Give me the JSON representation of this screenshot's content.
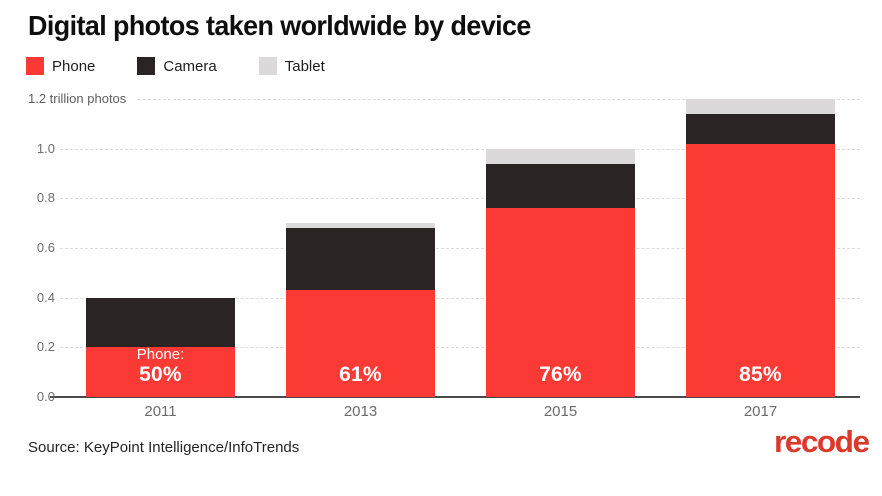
{
  "title": "Digital photos taken worldwide by device",
  "legend": {
    "items": [
      {
        "label": "Phone",
        "color": "#fb3a35"
      },
      {
        "label": "Camera",
        "color": "#2a2425"
      },
      {
        "label": "Tablet",
        "color": "#dbd9d9"
      }
    ]
  },
  "source": "Source: KeyPoint Intelligence/InfoTrends",
  "logo_text": "recode",
  "colors": {
    "phone": "#fb3a35",
    "camera": "#2a2425",
    "tablet": "#dbd9d9",
    "gridline": "#dcdcdc",
    "axis": "#4a4a4a",
    "logo_red": "#dc392d",
    "bar_label_text": "#ffffff"
  },
  "chart_data": {
    "type": "bar",
    "stacked": true,
    "title": "Digital photos taken worldwide by device",
    "xlabel": "",
    "ylabel": "trillion photos",
    "ylim": [
      0,
      1.2
    ],
    "grid": "dashed horizontal",
    "legend_position": "top-left",
    "categories": [
      "2011",
      "2013",
      "2015",
      "2017"
    ],
    "series": [
      {
        "name": "Phone",
        "color": "#fb3a35",
        "values": [
          0.2,
          0.43,
          0.76,
          1.02
        ]
      },
      {
        "name": "Camera",
        "color": "#2a2425",
        "values": [
          0.2,
          0.25,
          0.18,
          0.12
        ]
      },
      {
        "name": "Tablet",
        "color": "#dbd9d9",
        "values": [
          0.0,
          0.02,
          0.06,
          0.06
        ]
      }
    ],
    "totals": [
      0.4,
      0.7,
      1.0,
      1.2
    ],
    "bar_labels": [
      {
        "prefix": "Phone:",
        "pct": "50%"
      },
      {
        "prefix": "",
        "pct": "61%"
      },
      {
        "prefix": "",
        "pct": "76%"
      },
      {
        "prefix": "",
        "pct": "85%"
      }
    ],
    "yticks": [
      0.0,
      0.2,
      0.4,
      0.6,
      0.8,
      1.0,
      1.2
    ],
    "ytick_labels": [
      "0.0",
      "0.2",
      "0.4",
      "0.6",
      "0.8",
      "1.0",
      "1.2 trillion photos"
    ]
  }
}
